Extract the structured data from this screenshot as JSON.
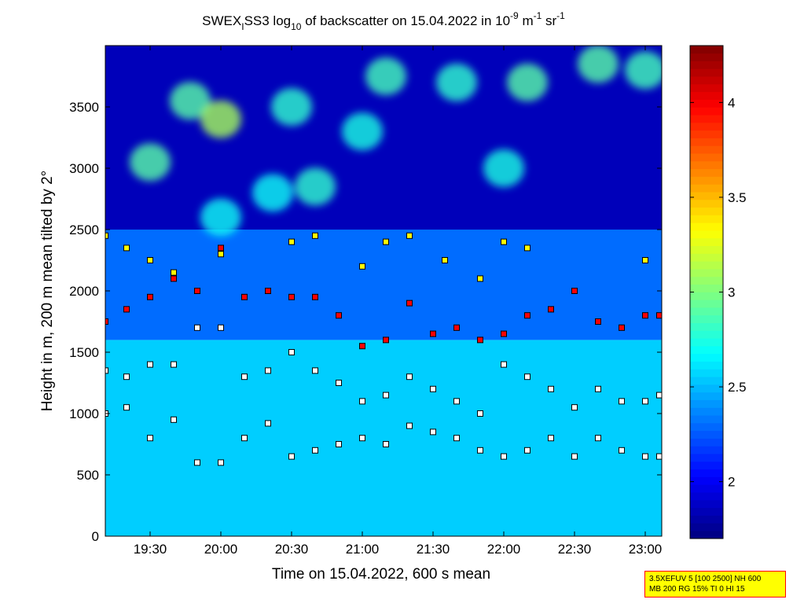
{
  "chart_data": {
    "type": "heatmap",
    "title": {
      "prefix": "SWEX",
      "sub": "I",
      "rest": "SS3 log",
      "log_base": "10",
      "rest2": " of backscatter on 15.04.2022 in 10",
      "exp1": "-9",
      "unit_m": " m",
      "exp2": "-1",
      "unit_sr": " sr",
      "exp3": "-1"
    },
    "xlabel": "Time on 15.04.2022, 600 s mean",
    "ylabel": "Height in m, 200 m mean tilted by 2°",
    "xlim": [
      "19:11",
      "23:07"
    ],
    "ylim": [
      0,
      4000
    ],
    "x_ticks": [
      "19:30",
      "20:00",
      "20:30",
      "21:00",
      "21:30",
      "22:00",
      "22:30",
      "23:00"
    ],
    "y_ticks": [
      0,
      500,
      1000,
      1500,
      2000,
      2500,
      3000,
      3500
    ],
    "colorbar": {
      "range": [
        1.7,
        4.3
      ],
      "ticks": [
        2,
        2.5,
        3,
        3.5,
        4
      ],
      "tick_labels": [
        "2",
        "2.5",
        "3",
        "3.5",
        "4"
      ],
      "colormap": "jet"
    },
    "layers": [
      {
        "start": "19:11",
        "end": "23:07",
        "base_m": 0,
        "top_m": 1600,
        "value": 2.55
      },
      {
        "start": "19:11",
        "end": "23:07",
        "base_m": 1600,
        "top_m": 2500,
        "value": 2.3
      },
      {
        "start": "19:11",
        "end": "23:07",
        "base_m": 2500,
        "top_m": 4000,
        "value": 1.85
      }
    ],
    "cloud_patches": [
      {
        "time": "19:30",
        "height_m": 3050,
        "value": 2.9
      },
      {
        "time": "19:47",
        "height_m": 3550,
        "value": 2.9
      },
      {
        "time": "20:00",
        "height_m": 3400,
        "value": 3.1
      },
      {
        "time": "20:00",
        "height_m": 2600,
        "value": 2.7
      },
      {
        "time": "20:22",
        "height_m": 2800,
        "value": 2.7
      },
      {
        "time": "20:30",
        "height_m": 3500,
        "value": 2.8
      },
      {
        "time": "20:40",
        "height_m": 2850,
        "value": 2.8
      },
      {
        "time": "21:00",
        "height_m": 3300,
        "value": 2.75
      },
      {
        "time": "21:10",
        "height_m": 3750,
        "value": 2.85
      },
      {
        "time": "21:40",
        "height_m": 3700,
        "value": 2.8
      },
      {
        "time": "22:00",
        "height_m": 3000,
        "value": 2.75
      },
      {
        "time": "22:10",
        "height_m": 3700,
        "value": 2.9
      },
      {
        "time": "22:40",
        "height_m": 3850,
        "value": 2.9
      },
      {
        "time": "23:00",
        "height_m": 3800,
        "value": 2.85
      }
    ],
    "layer_detections": [
      {
        "name": "layer-1",
        "color": "#ffffff",
        "points": [
          [
            "19:11",
            1000
          ],
          [
            "19:20",
            1050
          ],
          [
            "19:30",
            800
          ],
          [
            "19:40",
            950
          ],
          [
            "19:50",
            600
          ],
          [
            "20:00",
            600
          ],
          [
            "20:10",
            800
          ],
          [
            "20:20",
            920
          ],
          [
            "20:30",
            650
          ],
          [
            "20:40",
            700
          ],
          [
            "20:50",
            750
          ],
          [
            "21:00",
            800
          ],
          [
            "21:10",
            750
          ],
          [
            "21:20",
            900
          ],
          [
            "21:30",
            850
          ],
          [
            "21:40",
            800
          ],
          [
            "21:50",
            700
          ],
          [
            "22:00",
            650
          ],
          [
            "22:10",
            700
          ],
          [
            "22:20",
            800
          ],
          [
            "22:30",
            650
          ],
          [
            "22:40",
            800
          ],
          [
            "22:50",
            700
          ],
          [
            "23:00",
            650
          ],
          [
            "23:06",
            650
          ]
        ]
      },
      {
        "name": "layer-2",
        "color": "#ffffff",
        "points": [
          [
            "19:11",
            1350
          ],
          [
            "19:20",
            1300
          ],
          [
            "19:30",
            1400
          ],
          [
            "19:40",
            1400
          ],
          [
            "19:50",
            1700
          ],
          [
            "20:00",
            1700
          ],
          [
            "20:10",
            1300
          ],
          [
            "20:20",
            1350
          ],
          [
            "20:30",
            1500
          ],
          [
            "20:40",
            1350
          ],
          [
            "20:50",
            1250
          ],
          [
            "21:00",
            1100
          ],
          [
            "21:10",
            1150
          ],
          [
            "21:20",
            1300
          ],
          [
            "21:30",
            1200
          ],
          [
            "21:40",
            1100
          ],
          [
            "21:50",
            1000
          ],
          [
            "22:00",
            1400
          ],
          [
            "22:10",
            1300
          ],
          [
            "22:20",
            1200
          ],
          [
            "22:30",
            1050
          ],
          [
            "22:40",
            1200
          ],
          [
            "22:50",
            1100
          ],
          [
            "23:00",
            1100
          ],
          [
            "23:06",
            1150
          ]
        ]
      },
      {
        "name": "layer-3",
        "color": "#ff0000",
        "points": [
          [
            "19:11",
            1750
          ],
          [
            "19:20",
            1850
          ],
          [
            "19:30",
            1950
          ],
          [
            "19:40",
            2100
          ],
          [
            "19:50",
            2000
          ],
          [
            "20:00",
            2350
          ],
          [
            "20:10",
            1950
          ],
          [
            "20:20",
            2000
          ],
          [
            "20:30",
            1950
          ],
          [
            "20:40",
            1950
          ],
          [
            "20:50",
            1800
          ],
          [
            "21:00",
            1550
          ],
          [
            "21:10",
            1600
          ],
          [
            "21:20",
            1900
          ],
          [
            "21:30",
            1650
          ],
          [
            "21:40",
            1700
          ],
          [
            "21:50",
            1600
          ],
          [
            "22:00",
            1650
          ],
          [
            "22:10",
            1800
          ],
          [
            "22:20",
            1850
          ],
          [
            "22:30",
            2000
          ],
          [
            "22:40",
            1750
          ],
          [
            "22:50",
            1700
          ],
          [
            "23:00",
            1800
          ],
          [
            "23:06",
            1800
          ]
        ]
      },
      {
        "name": "layer-4",
        "color": "#ffff00",
        "points": [
          [
            "19:11",
            2450
          ],
          [
            "19:20",
            2350
          ],
          [
            "19:30",
            2250
          ],
          [
            "19:40",
            2150
          ],
          [
            "20:00",
            2300
          ],
          [
            "20:30",
            2400
          ],
          [
            "20:40",
            2450
          ],
          [
            "21:00",
            2200
          ],
          [
            "21:10",
            2400
          ],
          [
            "21:20",
            2450
          ],
          [
            "21:35",
            2250
          ],
          [
            "21:50",
            2100
          ],
          [
            "22:00",
            2400
          ],
          [
            "22:10",
            2350
          ],
          [
            "23:00",
            2250
          ]
        ]
      }
    ]
  },
  "annotation": {
    "line1": "3.5XEFUV 5 [100 2500] NH 600",
    "line2": "MB 200 RG 15% TI 0 HI 15"
  }
}
